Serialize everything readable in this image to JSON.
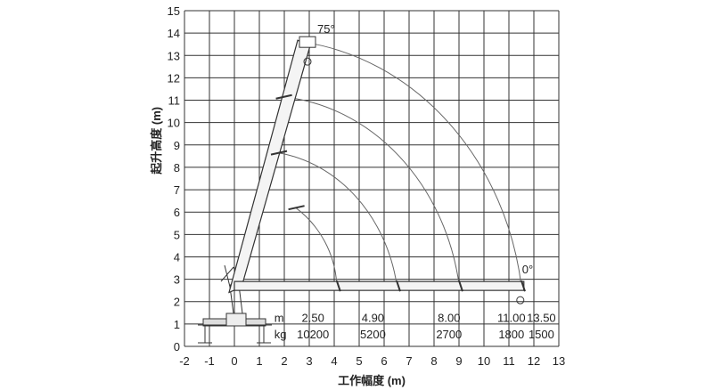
{
  "chart_data": {
    "type": "line",
    "title": "",
    "xlabel": "工作幅度 (m)",
    "ylabel": "起升高度 (m)",
    "xlim": [
      -2,
      13
    ],
    "ylim": [
      0,
      15
    ],
    "x_ticks": [
      "-2",
      "-1",
      "0",
      "1",
      "2",
      "3",
      "4",
      "5",
      "6",
      "7",
      "8",
      "9",
      "10",
      "11",
      "12",
      "13"
    ],
    "y_ticks": [
      "0",
      "1",
      "2",
      "3",
      "4",
      "5",
      "6",
      "7",
      "8",
      "9",
      "10",
      "11",
      "12",
      "13",
      "14",
      "15"
    ],
    "grid": true,
    "boom_angle_max_label": "75°",
    "boom_angle_min_label": "0°",
    "table_row_labels": [
      "m",
      "kg"
    ],
    "load_table": [
      {
        "radius": "2.50",
        "load": "10200",
        "x": 3.15
      },
      {
        "radius": "4.90",
        "load": "5200",
        "x": 5.55
      },
      {
        "radius": "8.00",
        "load": "2700",
        "x": 8.6
      },
      {
        "radius": "11.00",
        "load": "1800",
        "x": 11.1
      },
      {
        "radius": "13.50",
        "load": "1500",
        "x": 12.3
      }
    ],
    "reach_arcs": [
      {
        "tip": [
          2.45,
          6.2
        ],
        "end": [
          4.1,
          2.8
        ]
      },
      {
        "tip": [
          1.75,
          8.65
        ],
        "end": [
          6.5,
          2.8
        ]
      },
      {
        "tip": [
          1.95,
          11.15
        ],
        "end": [
          9.0,
          2.8
        ]
      },
      {
        "tip": [
          2.75,
          13.6
        ],
        "end": [
          11.5,
          2.7
        ]
      }
    ],
    "boom_pivot": [
      0.0,
      2.65
    ]
  }
}
